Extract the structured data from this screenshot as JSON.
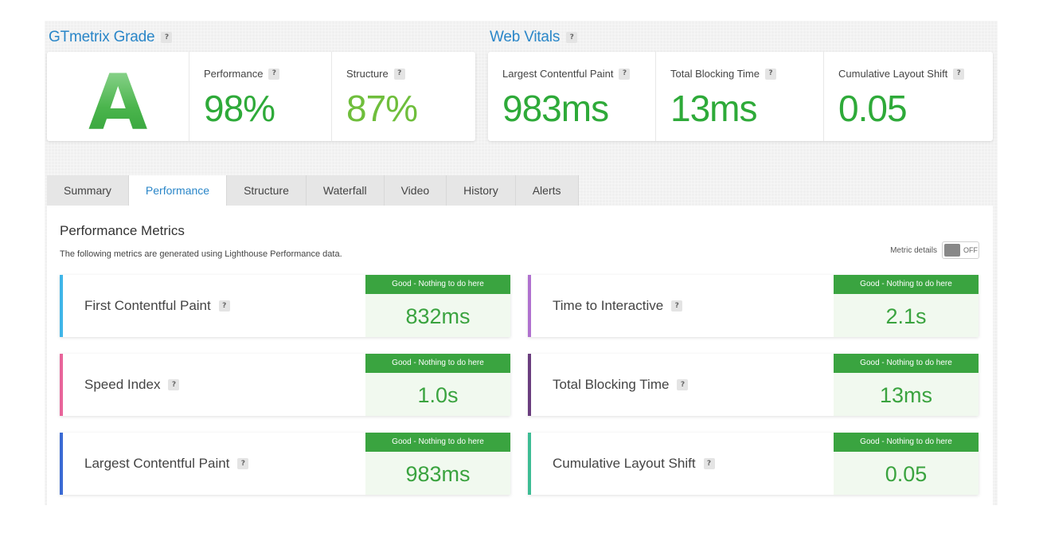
{
  "grade_section": {
    "title": "GTmetrix Grade",
    "help": "?",
    "grade": "A",
    "performance_label": "Performance",
    "performance_value": "98%",
    "structure_label": "Structure",
    "structure_value": "87%"
  },
  "vitals_section": {
    "title": "Web Vitals",
    "help": "?",
    "lcp_label": "Largest Contentful Paint",
    "lcp_value": "983ms",
    "tbt_label": "Total Blocking Time",
    "tbt_value": "13ms",
    "cls_label": "Cumulative Layout Shift",
    "cls_value": "0.05"
  },
  "tabs": [
    "Summary",
    "Performance",
    "Structure",
    "Waterfall",
    "Video",
    "History",
    "Alerts"
  ],
  "active_tab": "Performance",
  "panel": {
    "title": "Performance Metrics",
    "subtitle": "The following metrics are generated using Lighthouse Performance data.",
    "metric_details_label": "Metric details",
    "toggle_text": "OFF"
  },
  "metrics": [
    {
      "name": "First Contentful Paint",
      "badge": "Good - Nothing to do here",
      "value": "832ms",
      "color": "#3fb5e8"
    },
    {
      "name": "Time to Interactive",
      "badge": "Good - Nothing to do here",
      "value": "2.1s",
      "color": "#b071cf"
    },
    {
      "name": "Speed Index",
      "badge": "Good - Nothing to do here",
      "value": "1.0s",
      "color": "#e8649a"
    },
    {
      "name": "Total Blocking Time",
      "badge": "Good - Nothing to do here",
      "value": "13ms",
      "color": "#6a3d7e"
    },
    {
      "name": "Largest Contentful Paint",
      "badge": "Good - Nothing to do here",
      "value": "983ms",
      "color": "#3a6ad4"
    },
    {
      "name": "Cumulative Layout Shift",
      "badge": "Good - Nothing to do here",
      "value": "0.05",
      "color": "#3dbc94"
    }
  ],
  "colors": {
    "accent_blue": "#2a86c8",
    "perf_green": "#2eaa39",
    "structure_green": "#6fbe3c",
    "vital_green": "#3aa33f",
    "badge_green": "#3aa440"
  }
}
